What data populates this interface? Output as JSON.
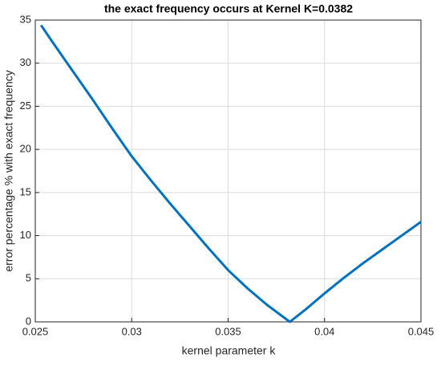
{
  "chart_data": {
    "type": "line",
    "title": "the exact frequency occurs at Kernel K=0.0382",
    "x_label": "kernel parameter  k",
    "y_label": "error percentage % with exact frequency",
    "x": [
      0.0253,
      0.026,
      0.027,
      0.028,
      0.029,
      0.03,
      0.031,
      0.032,
      0.033,
      0.034,
      0.035,
      0.036,
      0.037,
      0.0382,
      0.039,
      0.04,
      0.041,
      0.042,
      0.043,
      0.044,
      0.045
    ],
    "series": [
      {
        "name": "error",
        "color": "#0072bd",
        "values": [
          34.4,
          32.1,
          28.9,
          25.7,
          22.4,
          19.2,
          16.4,
          13.7,
          11.1,
          8.5,
          6.0,
          3.9,
          2.0,
          0,
          1.4,
          3.3,
          5.1,
          6.8,
          8.4,
          10.0,
          11.6
        ]
      }
    ],
    "xlim": [
      0.025,
      0.045
    ],
    "xticks": [
      0.025,
      0.03,
      0.035,
      0.04,
      0.045
    ],
    "ylim": [
      0,
      35
    ],
    "yticks": [
      0,
      5,
      10,
      15,
      20,
      25,
      30,
      35
    ],
    "grid": true
  }
}
